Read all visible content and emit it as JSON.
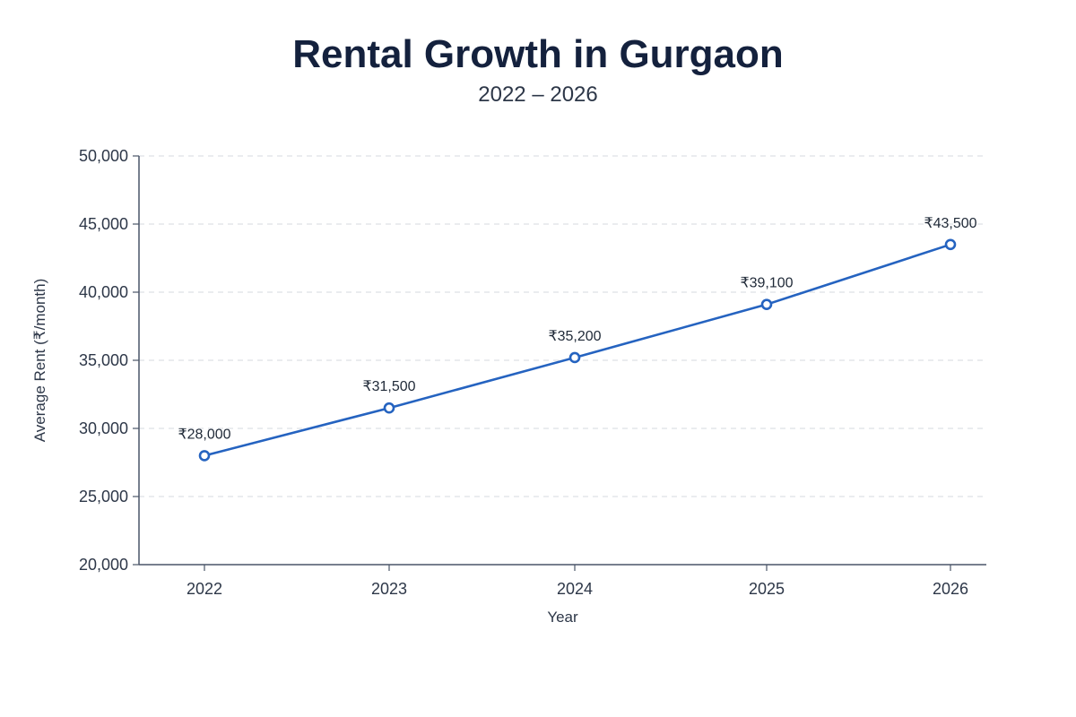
{
  "chart_data": {
    "type": "line",
    "title": "Rental Growth in Gurgaon",
    "subtitle": "2022 – 2026",
    "xlabel": "Year",
    "ylabel": "Average Rent (₹/month)",
    "categories": [
      "2022",
      "2023",
      "2024",
      "2025",
      "2026"
    ],
    "series": [
      {
        "values": [
          28000,
          31500,
          35200,
          39100,
          43500
        ]
      }
    ],
    "data_labels": [
      "₹28,000",
      "₹31,500",
      "₹35,200",
      "₹39,100",
      "₹43,500"
    ],
    "ylim": [
      20000,
      50000
    ],
    "yticks": [
      "20,000",
      "25,000",
      "30,000",
      "35,000",
      "40,000",
      "45,000",
      "50,000"
    ],
    "grid": true,
    "grid_style": "dashed horizontal",
    "legend": "none",
    "colors": {
      "line": "#2563c0",
      "marker_fill": "#ffffff",
      "axis": "#4a5568",
      "grid": "#d5d9df",
      "title": "#14213d"
    }
  }
}
